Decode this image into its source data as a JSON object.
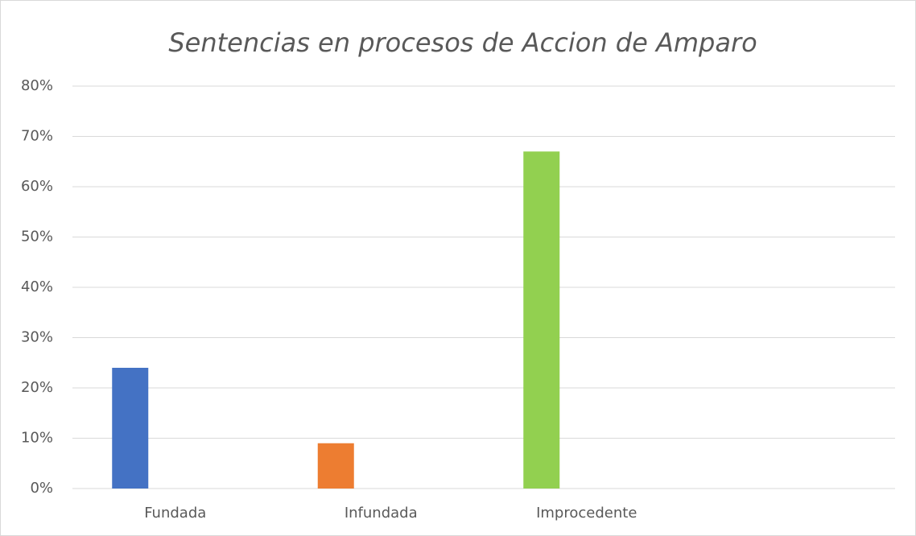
{
  "chart_data": {
    "type": "bar",
    "title": "Sentencias en procesos de Accion de Amparo",
    "categories": [
      "Fundada",
      "Infundada",
      "Improcedente",
      null
    ],
    "values": [
      24,
      9,
      67,
      null
    ],
    "colors": [
      "#4472c4",
      "#ed7d31",
      "#92d050",
      null
    ],
    "ylim": [
      0,
      80
    ],
    "yticks": [
      {
        "value": 0,
        "label": "0%"
      },
      {
        "value": 10,
        "label": "10%"
      },
      {
        "value": 20,
        "label": "20%"
      },
      {
        "value": 30,
        "label": "30%"
      },
      {
        "value": 40,
        "label": "40%"
      },
      {
        "value": 50,
        "label": "50%"
      },
      {
        "value": 60,
        "label": "60%"
      },
      {
        "value": 70,
        "label": "70%"
      },
      {
        "value": 80,
        "label": "80%"
      }
    ],
    "grid": true
  }
}
